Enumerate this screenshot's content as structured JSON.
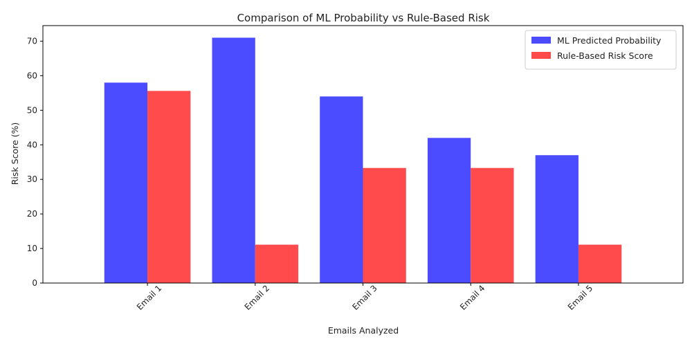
{
  "chart_data": {
    "type": "bar",
    "title": "Comparison of ML Probability vs Rule-Based Risk",
    "xlabel": "Emails Analyzed",
    "ylabel": "Risk Score (%)",
    "categories": [
      "Email 1",
      "Email 2",
      "Email 3",
      "Email 4",
      "Email 5"
    ],
    "series": [
      {
        "name": "ML Predicted Probability",
        "color": "#4b4bff",
        "values": [
          58,
          71,
          54,
          42,
          37
        ]
      },
      {
        "name": "Rule-Based Risk Score",
        "color": "#ff4b4b",
        "values": [
          55.6,
          11.1,
          33.3,
          33.3,
          11.1
        ]
      }
    ],
    "ylim": [
      0,
      74.5
    ],
    "yticks": [
      0,
      10,
      20,
      30,
      40,
      50,
      60,
      70
    ],
    "grid": false,
    "legend_position": "upper right"
  }
}
